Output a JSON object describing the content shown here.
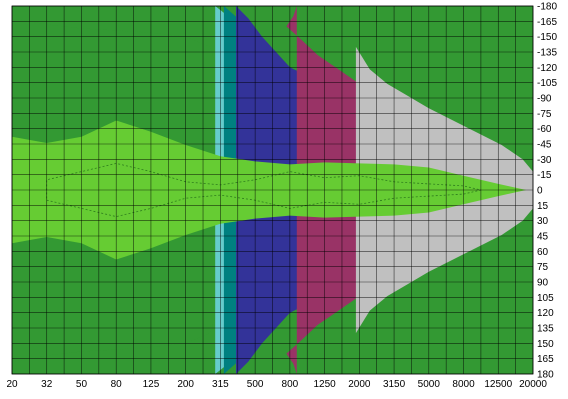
{
  "chart_data": {
    "type": "heatmap",
    "title": "",
    "xlabel": "",
    "ylabel": "",
    "x_tick_labels": [
      "20",
      "32",
      "50",
      "80",
      "125",
      "200",
      "315",
      "500",
      "800",
      "1250",
      "2000",
      "3150",
      "5000",
      "8000",
      "12500",
      "20000"
    ],
    "y_tick_labels": [
      "-180",
      "-165",
      "-150",
      "-135",
      "-120",
      "-105",
      "-90",
      "-75",
      "-60",
      "-45",
      "-30",
      "-15",
      "0",
      "15",
      "30",
      "45",
      "60",
      "75",
      "90",
      "105",
      "120",
      "135",
      "150",
      "165",
      "180"
    ],
    "levels": [
      {
        "name": "level-1",
        "color": "#c0c0c0"
      },
      {
        "name": "level-2",
        "color": "#993366"
      },
      {
        "name": "level-3",
        "color": "#333399"
      },
      {
        "name": "level-4",
        "color": "#008080"
      },
      {
        "name": "level-5",
        "color": "#66cccc"
      },
      {
        "name": "level-6",
        "color": "#339933"
      },
      {
        "name": "level-7",
        "color": "#66cc33"
      }
    ],
    "x_index_range": [
      0,
      15
    ],
    "y_range": [
      -180,
      180
    ],
    "grid": true,
    "y_axis_position": "right",
    "contours": [
      {
        "level": "level-6",
        "points": [
          [
            0,
            180
          ],
          [
            0,
            168
          ],
          [
            1,
            162
          ],
          [
            2,
            158
          ],
          [
            3,
            156
          ],
          [
            4,
            154
          ],
          [
            5,
            150
          ],
          [
            5.7,
            140
          ],
          [
            5.9,
            120
          ],
          [
            6.3,
            105
          ],
          [
            7,
            95
          ],
          [
            7.6,
            80
          ],
          [
            8.4,
            68
          ],
          [
            9,
            55
          ],
          [
            9.6,
            46
          ],
          [
            10.3,
            38
          ],
          [
            11,
            30
          ],
          [
            12,
            23
          ],
          [
            13,
            16
          ],
          [
            14,
            8
          ],
          [
            14.9,
            0
          ],
          [
            14,
            -8
          ],
          [
            13,
            -16
          ],
          [
            12,
            -23
          ],
          [
            11,
            -30
          ],
          [
            10.3,
            -38
          ],
          [
            9.6,
            -46
          ],
          [
            9,
            -55
          ],
          [
            8.4,
            -68
          ],
          [
            7.6,
            -80
          ],
          [
            7,
            -95
          ],
          [
            6.3,
            -105
          ],
          [
            5.9,
            -120
          ],
          [
            5.7,
            -140
          ],
          [
            5,
            -150
          ],
          [
            4,
            -154
          ],
          [
            3,
            -156
          ],
          [
            2,
            -158
          ],
          [
            1,
            -162
          ],
          [
            0,
            -168
          ],
          [
            0,
            -180
          ]
        ]
      },
      {
        "level": "level-5",
        "points": [
          [
            5.85,
            180
          ],
          [
            6.3,
            168
          ],
          [
            6.7,
            150
          ],
          [
            7.1,
            135
          ],
          [
            7.5,
            120
          ],
          [
            8.1,
            110
          ],
          [
            8.8,
            98
          ],
          [
            9.4,
            85
          ],
          [
            10,
            72
          ],
          [
            10.7,
            60
          ],
          [
            11.4,
            50
          ],
          [
            12.2,
            40
          ],
          [
            13,
            30
          ],
          [
            14,
            18
          ],
          [
            14.9,
            2
          ],
          [
            14.9,
            -2
          ],
          [
            14,
            -18
          ],
          [
            13,
            -30
          ],
          [
            12.2,
            -40
          ],
          [
            11.4,
            -50
          ],
          [
            10.7,
            -60
          ],
          [
            10,
            -72
          ],
          [
            9.4,
            -85
          ],
          [
            8.8,
            -98
          ],
          [
            8.1,
            -110
          ],
          [
            7.5,
            -120
          ],
          [
            7.1,
            -135
          ],
          [
            6.7,
            -150
          ],
          [
            6.3,
            -168
          ],
          [
            5.85,
            -180
          ]
        ]
      },
      {
        "level": "level-4",
        "points": [
          [
            6.1,
            180
          ],
          [
            6.5,
            168
          ],
          [
            6.9,
            150
          ],
          [
            7.3,
            135
          ],
          [
            7.7,
            120
          ],
          [
            8.3,
            110
          ],
          [
            9,
            98
          ],
          [
            9.6,
            85
          ],
          [
            10.2,
            72
          ],
          [
            10.9,
            60
          ],
          [
            11.6,
            50
          ],
          [
            12.4,
            40
          ],
          [
            13.2,
            30
          ],
          [
            14.1,
            18
          ],
          [
            14.95,
            4
          ],
          [
            14.95,
            -4
          ],
          [
            14.1,
            -18
          ],
          [
            13.2,
            -30
          ],
          [
            12.4,
            -40
          ],
          [
            11.6,
            -50
          ],
          [
            10.9,
            -60
          ],
          [
            10.2,
            -72
          ],
          [
            9.6,
            -85
          ],
          [
            9,
            -98
          ],
          [
            8.3,
            -110
          ],
          [
            7.7,
            -120
          ],
          [
            7.3,
            -135
          ],
          [
            6.9,
            -150
          ],
          [
            6.5,
            -168
          ],
          [
            6.1,
            -180
          ]
        ]
      },
      {
        "level": "level-3",
        "points": [
          [
            6.45,
            180
          ],
          [
            6.8,
            168
          ],
          [
            7.2,
            150
          ],
          [
            7.6,
            135
          ],
          [
            8,
            120
          ],
          [
            8.6,
            110
          ],
          [
            9.3,
            98
          ],
          [
            9.9,
            85
          ],
          [
            10.5,
            72
          ],
          [
            11.1,
            60
          ],
          [
            11.8,
            50
          ],
          [
            12.6,
            40
          ],
          [
            13.4,
            30
          ],
          [
            14.3,
            18
          ],
          [
            15,
            5
          ],
          [
            15,
            -5
          ],
          [
            14.3,
            -18
          ],
          [
            13.4,
            -30
          ],
          [
            12.6,
            -40
          ],
          [
            11.8,
            -50
          ],
          [
            11.1,
            -60
          ],
          [
            10.5,
            -72
          ],
          [
            9.9,
            -85
          ],
          [
            9.3,
            -98
          ],
          [
            8.6,
            -110
          ],
          [
            8,
            -120
          ],
          [
            7.6,
            -135
          ],
          [
            7.2,
            -150
          ],
          [
            6.8,
            -168
          ],
          [
            6.45,
            -180
          ]
        ]
      },
      {
        "level": "level-2",
        "points": [
          [
            8.2,
            180
          ],
          [
            8.1,
            170
          ],
          [
            7.9,
            160
          ],
          [
            8.3,
            148
          ],
          [
            8.8,
            132
          ],
          [
            9.4,
            118
          ],
          [
            10,
            104
          ],
          [
            10.6,
            90
          ],
          [
            11.2,
            76
          ],
          [
            11.9,
            64
          ],
          [
            12.6,
            54
          ],
          [
            13.3,
            44
          ],
          [
            14,
            32
          ],
          [
            14.6,
            20
          ],
          [
            15,
            8
          ],
          [
            15,
            -8
          ],
          [
            14.6,
            -20
          ],
          [
            14,
            -32
          ],
          [
            13.3,
            -44
          ],
          [
            12.6,
            -54
          ],
          [
            11.9,
            -64
          ],
          [
            11.2,
            -76
          ],
          [
            10.6,
            -90
          ],
          [
            10,
            -104
          ],
          [
            9.4,
            -118
          ],
          [
            8.8,
            -132
          ],
          [
            8.3,
            -148
          ],
          [
            7.9,
            -160
          ],
          [
            8.1,
            -170
          ],
          [
            8.2,
            -180
          ]
        ]
      },
      {
        "level": "level-1",
        "points": [
          [
            9.9,
            180
          ],
          [
            9.9,
            140
          ],
          [
            10.3,
            118
          ],
          [
            10.8,
            104
          ],
          [
            11.4,
            92
          ],
          [
            12,
            80
          ],
          [
            12.7,
            68
          ],
          [
            13.4,
            56
          ],
          [
            14.1,
            44
          ],
          [
            14.7,
            30
          ],
          [
            15,
            18
          ],
          [
            15,
            -18
          ],
          [
            14.7,
            -30
          ],
          [
            14.1,
            -44
          ],
          [
            13.4,
            -56
          ],
          [
            12.7,
            -68
          ],
          [
            12,
            -80
          ],
          [
            11.4,
            -92
          ],
          [
            10.8,
            -104
          ],
          [
            10.3,
            -118
          ],
          [
            9.9,
            -140
          ],
          [
            9.9,
            -180
          ]
        ]
      },
      {
        "level": "level-7",
        "points": [
          [
            0,
            52
          ],
          [
            1,
            46
          ],
          [
            2,
            52
          ],
          [
            3,
            68
          ],
          [
            4,
            57
          ],
          [
            5,
            44
          ],
          [
            6,
            33
          ],
          [
            7,
            28
          ],
          [
            8,
            25
          ],
          [
            9,
            27
          ],
          [
            10,
            26
          ],
          [
            11,
            25
          ],
          [
            12,
            22
          ],
          [
            13,
            14
          ],
          [
            14,
            6
          ],
          [
            14.8,
            0
          ],
          [
            14,
            -6
          ],
          [
            13,
            -14
          ],
          [
            12,
            -22
          ],
          [
            11,
            -25
          ],
          [
            10,
            -26
          ],
          [
            9,
            -27
          ],
          [
            8,
            -25
          ],
          [
            7,
            -28
          ],
          [
            6,
            -33
          ],
          [
            5,
            -44
          ],
          [
            4,
            -57
          ],
          [
            3,
            -68
          ],
          [
            2,
            -52
          ],
          [
            1,
            -46
          ],
          [
            0,
            -52
          ]
        ]
      }
    ],
    "dotted_contour": [
      [
        1,
        10
      ],
      [
        2,
        18
      ],
      [
        3,
        26
      ],
      [
        4,
        18
      ],
      [
        5,
        8
      ],
      [
        6,
        5
      ],
      [
        7,
        10
      ],
      [
        8,
        18
      ],
      [
        9,
        12
      ],
      [
        10,
        14
      ],
      [
        11,
        8
      ],
      [
        12,
        6
      ],
      [
        13,
        4
      ],
      [
        13.5,
        0
      ],
      [
        13,
        -4
      ],
      [
        12,
        -6
      ],
      [
        11,
        -8
      ],
      [
        10,
        -14
      ],
      [
        9,
        -12
      ],
      [
        8,
        -18
      ],
      [
        7,
        -10
      ],
      [
        6,
        -5
      ],
      [
        5,
        -8
      ],
      [
        4,
        -18
      ],
      [
        3,
        -26
      ],
      [
        2,
        -18
      ],
      [
        1,
        -10
      ]
    ]
  }
}
